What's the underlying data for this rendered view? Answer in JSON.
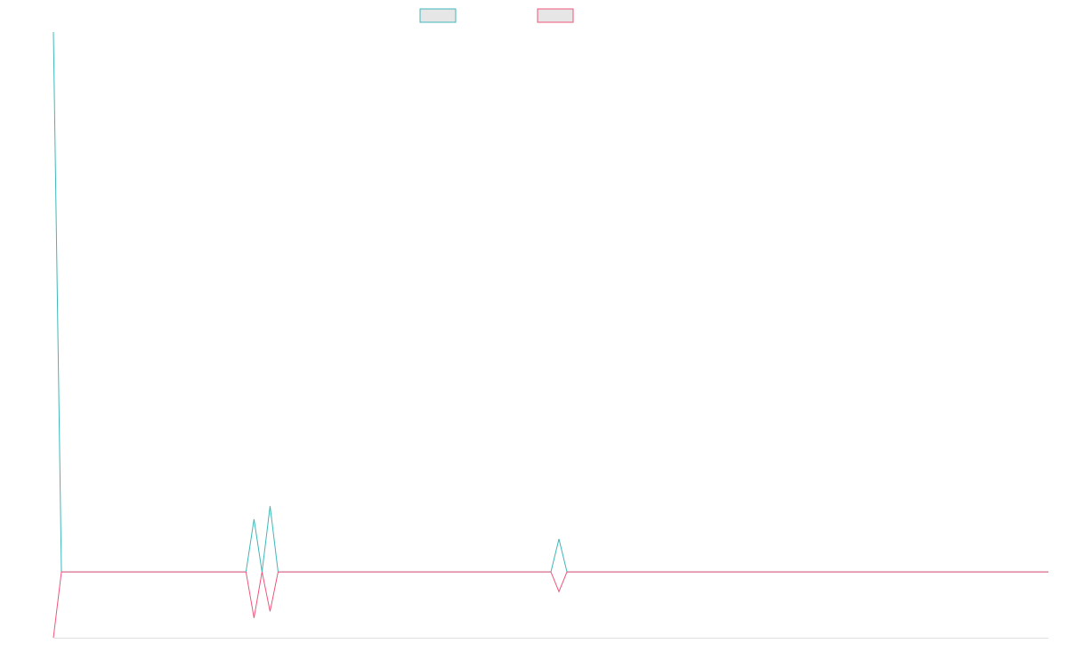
{
  "colors": {
    "series_a": "#3fb7b9",
    "series_b": "#f0547a",
    "legend_fill": "#e6e6e6",
    "axis": "#e0e0e0"
  },
  "chart_data": {
    "type": "line",
    "title": "",
    "xlabel": "",
    "ylabel": "",
    "grid": false,
    "legend_position": "top-center",
    "xlim": [
      0,
      124
    ],
    "ylim": [
      -1,
      8.2
    ],
    "x": [
      0,
      1,
      2,
      3,
      4,
      5,
      6,
      7,
      8,
      9,
      10,
      11,
      12,
      13,
      14,
      15,
      16,
      17,
      18,
      19,
      20,
      21,
      22,
      23,
      24,
      25,
      26,
      27,
      28,
      29,
      30,
      31,
      32,
      33,
      34,
      35,
      36,
      37,
      38,
      39,
      40,
      41,
      42,
      43,
      44,
      45,
      46,
      47,
      48,
      49,
      50,
      51,
      52,
      53,
      54,
      55,
      56,
      57,
      58,
      59,
      60,
      61,
      62,
      63,
      64,
      65,
      66,
      67,
      68,
      69,
      70,
      71,
      72,
      73,
      74,
      75,
      76,
      77,
      78,
      79,
      80,
      81,
      82,
      83,
      84,
      85,
      86,
      87,
      88,
      89,
      90,
      91,
      92,
      93,
      94,
      95,
      96,
      97,
      98,
      99,
      100,
      101,
      102,
      103,
      104,
      105,
      106,
      107,
      108,
      109,
      110,
      111,
      112,
      113,
      114,
      115,
      116,
      117,
      118,
      119,
      120,
      121,
      122,
      123,
      124
    ],
    "series": [
      {
        "color_key": "series_a",
        "values": [
          8.2,
          0,
          0,
          0,
          0,
          0,
          0,
          0,
          0,
          0,
          0,
          0,
          0,
          0,
          0,
          0,
          0,
          0,
          0,
          0,
          0,
          0,
          0,
          0,
          0,
          0.8,
          0,
          1,
          0,
          0,
          0,
          0,
          0,
          0,
          0,
          0,
          0,
          0,
          0,
          0,
          0,
          0,
          0,
          0,
          0,
          0,
          0,
          0,
          0,
          0,
          0,
          0,
          0,
          0,
          0,
          0,
          0,
          0,
          0,
          0,
          0,
          0,
          0,
          0.5,
          0,
          0,
          0,
          0,
          0,
          0,
          0,
          0,
          0,
          0,
          0,
          0,
          0,
          0,
          0,
          0,
          0,
          0,
          0,
          0,
          0,
          0,
          0,
          0,
          0,
          0,
          0,
          0,
          0,
          0,
          0,
          0,
          0,
          0,
          0,
          0,
          0,
          0,
          0,
          0,
          0,
          0,
          0,
          0,
          0,
          0,
          0,
          0,
          0,
          0,
          0,
          0,
          0,
          0,
          0,
          0,
          0,
          0,
          0,
          0,
          0
        ]
      },
      {
        "color_key": "series_b",
        "values": [
          -1,
          0,
          0,
          0,
          0,
          0,
          0,
          0,
          0,
          0,
          0,
          0,
          0,
          0,
          0,
          0,
          0,
          0,
          0,
          0,
          0,
          0,
          0,
          0,
          0,
          -0.7,
          0,
          -0.6,
          0,
          0,
          0,
          0,
          0,
          0,
          0,
          0,
          0,
          0,
          0,
          0,
          0,
          0,
          0,
          0,
          0,
          0,
          0,
          0,
          0,
          0,
          0,
          0,
          0,
          0,
          0,
          0,
          0,
          0,
          0,
          0,
          0,
          0,
          0,
          -0.3,
          0,
          0,
          0,
          0,
          0,
          0,
          0,
          0,
          0,
          0,
          0,
          0,
          0,
          0,
          0,
          0,
          0,
          0,
          0,
          0,
          0,
          0,
          0,
          0,
          0,
          0,
          0,
          0,
          0,
          0,
          0,
          0,
          0,
          0,
          0,
          0,
          0,
          0,
          0,
          0,
          0,
          0,
          0,
          0,
          0,
          0,
          0,
          0,
          0,
          0,
          0,
          0,
          0,
          0,
          0,
          0,
          0,
          0,
          0,
          0,
          0
        ]
      }
    ]
  }
}
